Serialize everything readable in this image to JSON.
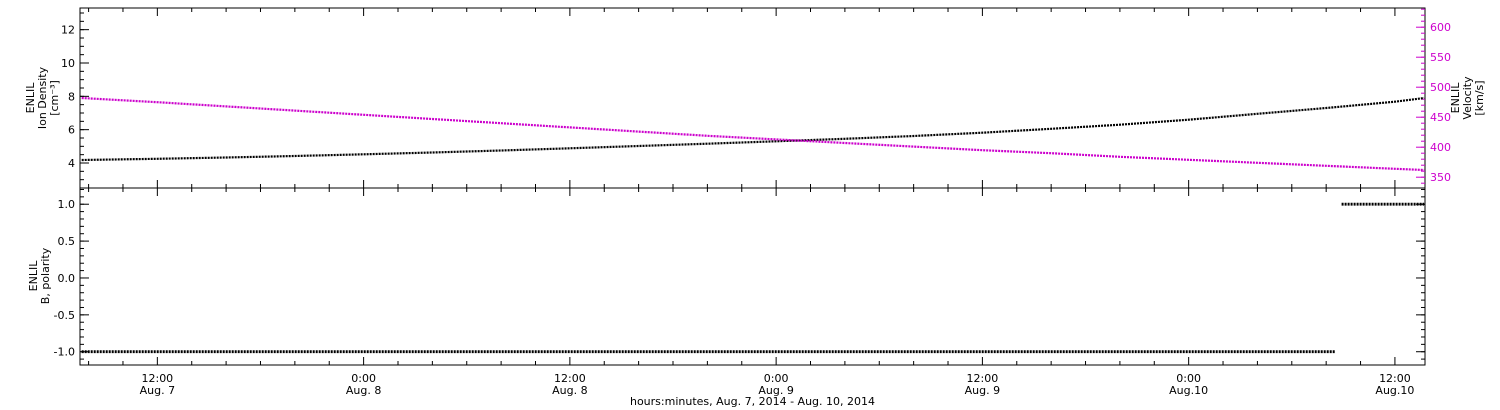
{
  "figure": {
    "background": "#ffffff",
    "frame_color": "#000000"
  },
  "x_axis": {
    "title": "hours:minutes, Aug.  7, 2014 - Aug. 10, 2014",
    "range": [
      7.5,
      85.75
    ],
    "ticks": [
      {
        "value": 12,
        "time": "12:00",
        "date": "Aug. 7"
      },
      {
        "value": 24,
        "time": "0:00",
        "date": "Aug. 8"
      },
      {
        "value": 36,
        "time": "12:00",
        "date": "Aug. 8"
      },
      {
        "value": 48,
        "time": "0:00",
        "date": "Aug. 9"
      },
      {
        "value": 60,
        "time": "12:00",
        "date": "Aug. 9"
      },
      {
        "value": 72,
        "time": "0:00",
        "date": "Aug.10"
      },
      {
        "value": 84,
        "time": "12:00",
        "date": "Aug.10"
      }
    ]
  },
  "chart_data": [
    {
      "type": "line",
      "panel": "top",
      "left_axis": {
        "label_lines": [
          "ENLIL",
          "Ion Density",
          "[cm⁻³]"
        ],
        "ylim": [
          2.5,
          13.3
        ],
        "ticks": [
          4,
          6,
          8,
          10,
          12
        ],
        "minor_step": 0.5,
        "color": "#000000"
      },
      "right_axis": {
        "label_lines": [
          "ENLIL",
          "Velocity",
          "[km/s]"
        ],
        "ylim": [
          332,
          632
        ],
        "ticks": [
          350,
          400,
          450,
          500,
          550,
          600
        ],
        "minor_step": 10,
        "color": "#cc00cc"
      },
      "series": [
        {
          "name": "ion-density",
          "axis": "left",
          "color": "#000000",
          "x": [
            7.6,
            12,
            16,
            20,
            24,
            28,
            32,
            36,
            40,
            44,
            48,
            52,
            56,
            60,
            64,
            68,
            72,
            76,
            80,
            84,
            85.7
          ],
          "y": [
            4.18,
            4.25,
            4.33,
            4.42,
            4.52,
            4.63,
            4.75,
            4.88,
            5.02,
            5.16,
            5.3,
            5.45,
            5.62,
            5.82,
            6.05,
            6.3,
            6.6,
            6.95,
            7.3,
            7.68,
            7.9
          ]
        },
        {
          "name": "velocity",
          "axis": "right",
          "color": "#cc00cc",
          "x": [
            7.6,
            12,
            16,
            20,
            24,
            28,
            32,
            36,
            40,
            44,
            48,
            52,
            56,
            60,
            64,
            68,
            72,
            76,
            80,
            84,
            85.7
          ],
          "y": [
            482,
            475,
            468,
            461,
            454,
            447,
            440,
            433,
            426,
            419,
            413,
            407,
            401,
            395,
            390,
            384,
            379,
            374,
            369,
            364,
            362
          ]
        }
      ]
    },
    {
      "type": "line",
      "panel": "bottom",
      "left_axis": {
        "label_lines": [
          "ENLIL",
          "B, polarity"
        ],
        "ylim": [
          -1.18,
          1.22
        ],
        "ticks": [
          -1.0,
          -0.5,
          0.0,
          0.5,
          1.0
        ],
        "minor_step": 0.1,
        "color": "#000000"
      },
      "series": [
        {
          "name": "bt-polarity-negative",
          "axis": "left",
          "color": "#000000",
          "x": [
            7.6,
            80.5
          ],
          "y": [
            -1,
            -1
          ]
        },
        {
          "name": "bt-polarity-positive",
          "axis": "left",
          "color": "#000000",
          "x": [
            80.9,
            85.7
          ],
          "y": [
            1,
            1
          ]
        }
      ]
    }
  ]
}
